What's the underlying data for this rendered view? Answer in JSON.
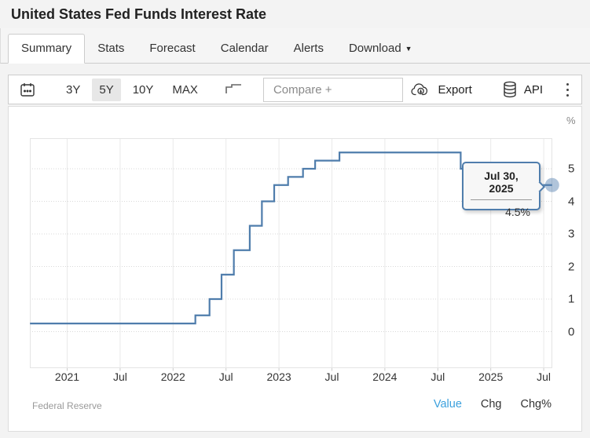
{
  "header": {
    "title": "United States Fed Funds Interest Rate"
  },
  "tabs": [
    {
      "label": "Summary",
      "active": true
    },
    {
      "label": "Stats",
      "active": false
    },
    {
      "label": "Forecast",
      "active": false
    },
    {
      "label": "Calendar",
      "active": false
    },
    {
      "label": "Alerts",
      "active": false
    },
    {
      "label": "Download",
      "active": false,
      "caret": "▼"
    }
  ],
  "toolbar": {
    "ranges": [
      {
        "label": "3Y",
        "active": false
      },
      {
        "label": "5Y",
        "active": true
      },
      {
        "label": "10Y",
        "active": false
      },
      {
        "label": "MAX",
        "active": false
      }
    ],
    "compare_placeholder": "Compare +",
    "export_label": "Export",
    "api_label": "API",
    "icons": {
      "calendar": "calendar-icon",
      "step_line": "step-line-chart-type-icon",
      "export": "cloud-download-icon",
      "api": "database-icon",
      "menu": "kebab-menu-icon"
    }
  },
  "chart_data": {
    "type": "line",
    "subtype": "step-after",
    "title": "United States Fed Funds Interest Rate",
    "unit": "%",
    "line_color": "#4f7dac",
    "marker_color": "rgba(79,125,172,0.45)",
    "grid": "on",
    "ylim": [
      -1.1,
      5.95
    ],
    "y_ticks": [
      0,
      1,
      2,
      3,
      4,
      5
    ],
    "x_ticks": [
      "2021",
      "Jul",
      "2022",
      "Jul",
      "2023",
      "Jul",
      "2024",
      "Jul",
      "2025",
      "Jul"
    ],
    "series": [
      {
        "name": "Fed Funds Interest Rate (%)",
        "points": [
          [
            "2020-08-25",
            0.25
          ],
          [
            "2022-03-17",
            0.5
          ],
          [
            "2022-05-05",
            1.0
          ],
          [
            "2022-06-16",
            1.75
          ],
          [
            "2022-07-28",
            2.5
          ],
          [
            "2022-09-22",
            3.25
          ],
          [
            "2022-11-03",
            4.0
          ],
          [
            "2022-12-15",
            4.5
          ],
          [
            "2023-02-02",
            4.75
          ],
          [
            "2023-03-23",
            5.0
          ],
          [
            "2023-05-04",
            5.25
          ],
          [
            "2023-07-27",
            5.5
          ],
          [
            "2024-09-19",
            5.0
          ],
          [
            "2024-11-08",
            4.75
          ],
          [
            "2024-12-19",
            4.5
          ],
          [
            "2025-07-30",
            4.5
          ]
        ]
      }
    ],
    "tooltip": {
      "date": "Jul 30, 2025",
      "value": "4.5%"
    }
  },
  "footer": {
    "source": "Federal Reserve",
    "links": [
      {
        "label": "Value",
        "active": true
      },
      {
        "label": "Chg",
        "active": false
      },
      {
        "label": "Chg%",
        "active": false
      }
    ]
  },
  "colors": {
    "accent_blue": "#3ba0dd",
    "line_blue": "#4f7dac",
    "active_range_bg": "#e7e7e7"
  }
}
